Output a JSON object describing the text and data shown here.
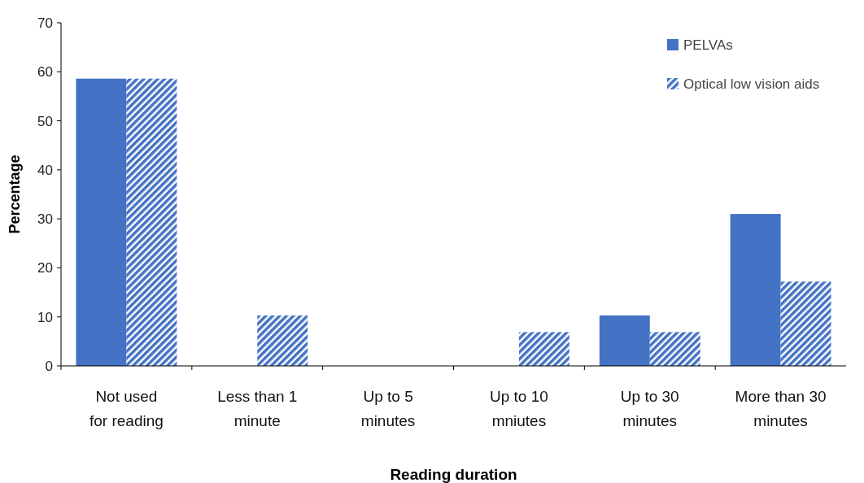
{
  "chart_data": {
    "type": "bar",
    "xlabel": "Reading duration",
    "ylabel": "Percentage",
    "categories": [
      "Not used\nfor reading",
      "Less than 1\nminute",
      "Up to 5\nminutes",
      "Up to 10\nmniutes",
      "Up to 30\nminutes",
      "More than 30\nminutes"
    ],
    "series": [
      {
        "name": "PELVAs",
        "color": "#4472c4",
        "values": [
          58.6,
          0,
          0,
          0,
          10.3,
          31.0
        ]
      },
      {
        "name": "Optical low vision aids",
        "color": "#4472c4",
        "values": [
          58.6,
          10.3,
          0,
          6.9,
          6.9,
          17.2
        ]
      }
    ],
    "ylim": [
      0,
      70
    ],
    "yticks": [
      0,
      10,
      20,
      30,
      40,
      50,
      60,
      70
    ],
    "grid": false,
    "legend": "top right"
  }
}
